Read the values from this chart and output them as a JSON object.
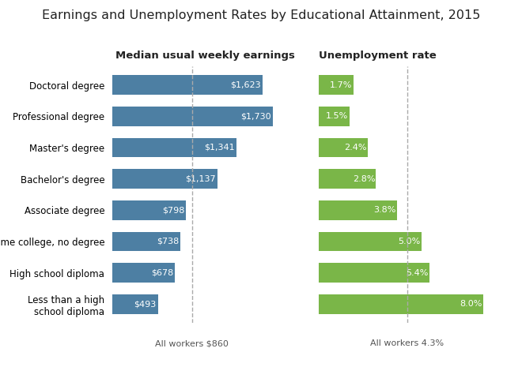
{
  "title": "Earnings and Unemployment Rates by Educational Attainment, 2015",
  "categories": [
    "Doctoral degree",
    "Professional degree",
    "Master's degree",
    "Bachelor's degree",
    "Associate degree",
    "Some college, no degree",
    "High school diploma",
    "Less than a high\nschool diploma"
  ],
  "earnings": [
    1623,
    1730,
    1341,
    1137,
    798,
    738,
    678,
    493
  ],
  "earnings_labels": [
    "$1,623",
    "$1,730",
    "$1,341",
    "$1,137",
    "$798",
    "$738",
    "$678",
    "$493"
  ],
  "unemployment": [
    1.7,
    1.5,
    2.4,
    2.8,
    3.8,
    5.0,
    5.4,
    8.0
  ],
  "unemployment_labels": [
    "1.7%",
    "1.5%",
    "2.4%",
    "2.8%",
    "3.8%",
    "5.0%",
    "5.4%",
    "8.0%"
  ],
  "earnings_color": "#4d7fa3",
  "unemployment_color": "#7ab648",
  "earnings_header": "Median usual weekly earnings",
  "unemployment_header": "Unemployment rate",
  "earnings_all_workers": "All workers $860",
  "unemployment_all_workers": "All workers 4.3%",
  "earnings_reference": 860,
  "unemployment_reference": 4.3,
  "earnings_max": 2000,
  "unemployment_max": 9.0,
  "background_color": "#ffffff",
  "title_fontsize": 11.5,
  "label_fontsize": 8.5,
  "bar_label_fontsize": 8,
  "header_fontsize": 9.5
}
